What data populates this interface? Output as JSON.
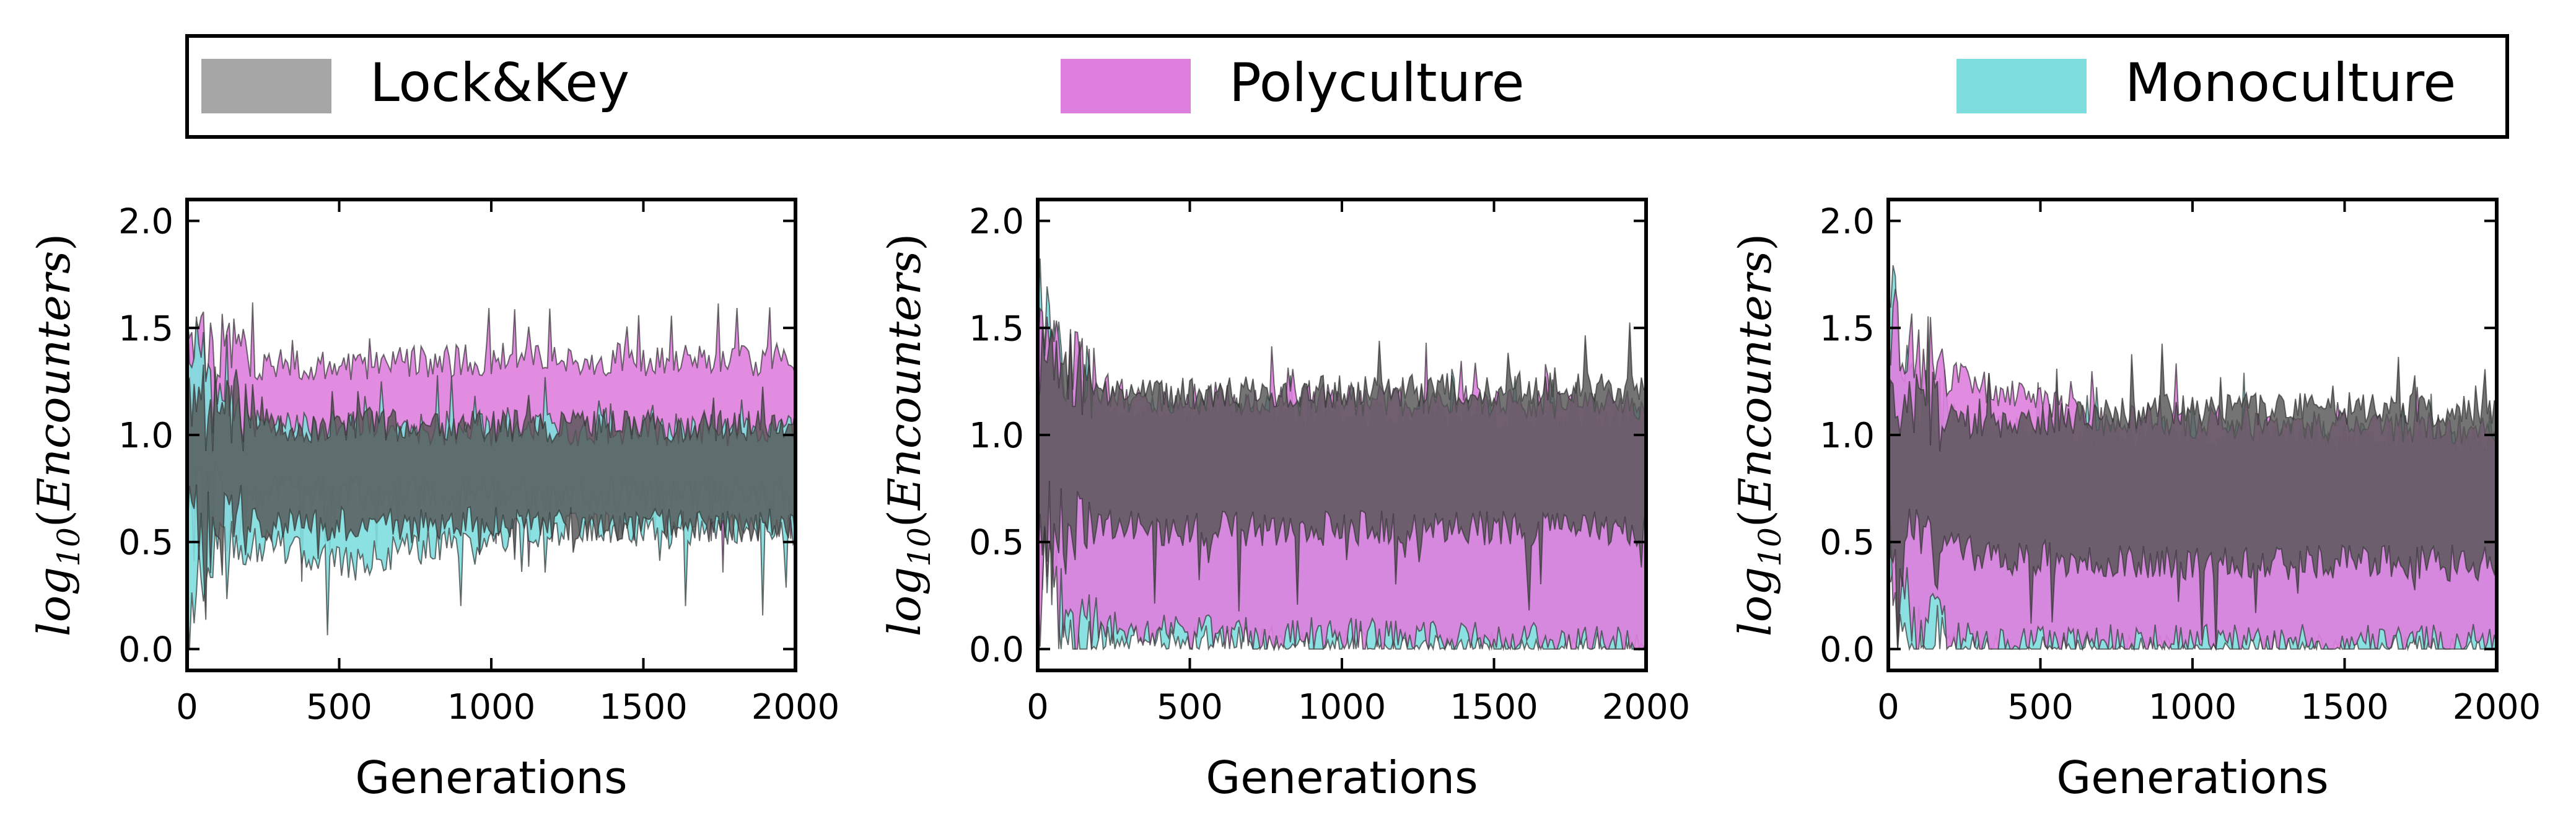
{
  "legend": {
    "placement": "top",
    "items": [
      {
        "label": "Lock&Key",
        "color": "#a6a6a6"
      },
      {
        "label": "Polyculture",
        "color": "#de7ede"
      },
      {
        "label": "Monoculture",
        "color": "#7edede"
      }
    ]
  },
  "chart_data": [
    {
      "type": "area",
      "title": "",
      "xlabel": "Generations",
      "ylabel_text": "Encounters",
      "ylabel_prefix": "log",
      "ylabel_subscript": "10",
      "xlim": [
        0,
        2000
      ],
      "ylim": [
        -0.1,
        2.1
      ],
      "xticks": [
        0,
        500,
        1000,
        1500,
        2000
      ],
      "yticks": [
        "0.0",
        "0.5",
        "1.0",
        "1.5",
        "2.0"
      ],
      "grid": false,
      "series": [
        {
          "name": "Polyculture",
          "color": "#de7ede",
          "style": "noisy_band",
          "lower": [
            [
              0,
              0.65
            ],
            [
              100,
              0.72
            ],
            [
              300,
              0.75
            ],
            [
              1000,
              0.74
            ],
            [
              2000,
              0.74
            ]
          ],
          "upper": [
            [
              0,
              1.4
            ],
            [
              100,
              1.33
            ],
            [
              300,
              1.3
            ],
            [
              1000,
              1.33
            ],
            [
              2000,
              1.33
            ]
          ]
        },
        {
          "name": "Monoculture",
          "color": "#7edede",
          "style": "noisy_band",
          "lower": [
            [
              0,
              0.25
            ],
            [
              100,
              0.5
            ],
            [
              300,
              0.5
            ],
            [
              500,
              0.42
            ],
            [
              800,
              0.5
            ],
            [
              1200,
              0.58
            ],
            [
              2000,
              0.58
            ]
          ],
          "upper": [
            [
              0,
              1.45
            ],
            [
              100,
              1.05
            ],
            [
              300,
              1.02
            ],
            [
              1000,
              1.0
            ],
            [
              2000,
              1.0
            ]
          ]
        },
        {
          "name": "Lock&Key",
          "color": "#555555",
          "style": "noisy_band",
          "lower": [
            [
              0,
              0.62
            ],
            [
              300,
              0.6
            ],
            [
              1000,
              0.6
            ],
            [
              2000,
              0.6
            ]
          ],
          "upper": [
            [
              0,
              1.08
            ],
            [
              300,
              1.02
            ],
            [
              1000,
              1.02
            ],
            [
              2000,
              1.02
            ]
          ]
        }
      ]
    },
    {
      "type": "area",
      "title": "",
      "xlabel": "Generations",
      "ylabel_text": "Encounters",
      "ylabel_prefix": "log",
      "ylabel_subscript": "10",
      "xlim": [
        0,
        2000
      ],
      "ylim": [
        -0.1,
        2.1
      ],
      "xticks": [
        0,
        500,
        1000,
        1500,
        2000
      ],
      "yticks": [
        "0.0",
        "0.5",
        "1.0",
        "1.5",
        "2.0"
      ],
      "grid": false,
      "series": [
        {
          "name": "Monoculture",
          "color": "#7edede",
          "style": "noisy_band",
          "lower": [
            [
              0,
              0.6
            ],
            [
              100,
              0.1
            ],
            [
              300,
              0.05
            ],
            [
              2000,
              0.0
            ]
          ],
          "upper": [
            [
              0,
              1.6
            ],
            [
              100,
              1.2
            ],
            [
              300,
              1.1
            ],
            [
              2000,
              1.05
            ]
          ]
        },
        {
          "name": "Polyculture",
          "color": "#de7ede",
          "style": "noisy_band",
          "lower": [
            [
              0,
              0.5
            ],
            [
              100,
              0.15
            ],
            [
              300,
              0.1
            ],
            [
              2000,
              0.05
            ]
          ],
          "upper": [
            [
              0,
              1.5
            ],
            [
              100,
              1.25
            ],
            [
              300,
              1.15
            ],
            [
              2000,
              1.12
            ]
          ]
        },
        {
          "name": "Lock&Key",
          "color": "#555555",
          "style": "noisy_band",
          "lower": [
            [
              0,
              0.62
            ],
            [
              300,
              0.58
            ],
            [
              1000,
              0.58
            ],
            [
              2000,
              0.58
            ]
          ],
          "upper": [
            [
              0,
              1.25
            ],
            [
              300,
              1.17
            ],
            [
              1000,
              1.18
            ],
            [
              2000,
              1.2
            ]
          ]
        }
      ]
    },
    {
      "type": "area",
      "title": "",
      "xlabel": "Generations",
      "ylabel_text": "Encounters",
      "ylabel_prefix": "log",
      "ylabel_subscript": "10",
      "xlim": [
        0,
        2000
      ],
      "ylim": [
        -0.1,
        2.1
      ],
      "xticks": [
        0,
        500,
        1000,
        1500,
        2000
      ],
      "yticks": [
        "0.0",
        "0.5",
        "1.0",
        "1.5",
        "2.0"
      ],
      "grid": false,
      "series": [
        {
          "name": "Monoculture",
          "color": "#7edede",
          "style": "noisy_band",
          "lower": [
            [
              0,
              0.5
            ],
            [
              80,
              0.05
            ],
            [
              300,
              0.0
            ],
            [
              2000,
              0.0
            ]
          ],
          "upper": [
            [
              0,
              1.6
            ],
            [
              100,
              1.1
            ],
            [
              300,
              1.0
            ],
            [
              2000,
              0.95
            ]
          ]
        },
        {
          "name": "Polyculture",
          "color": "#de7ede",
          "style": "noisy_band",
          "lower": [
            [
              0,
              0.5
            ],
            [
              100,
              0.1
            ],
            [
              300,
              0.05
            ],
            [
              2000,
              0.05
            ]
          ],
          "upper": [
            [
              0,
              1.45
            ],
            [
              100,
              1.3
            ],
            [
              300,
              1.2
            ],
            [
              700,
              1.05
            ],
            [
              2000,
              1.0
            ]
          ]
        },
        {
          "name": "Lock&Key",
          "color": "#555555",
          "style": "noisy_band",
          "lower": [
            [
              0,
              0.55
            ],
            [
              300,
              0.45
            ],
            [
              1000,
              0.42
            ],
            [
              2000,
              0.42
            ]
          ],
          "upper": [
            [
              0,
              1.1
            ],
            [
              300,
              1.03
            ],
            [
              1000,
              1.1
            ],
            [
              1500,
              1.1
            ],
            [
              2000,
              1.08
            ]
          ]
        }
      ]
    }
  ]
}
